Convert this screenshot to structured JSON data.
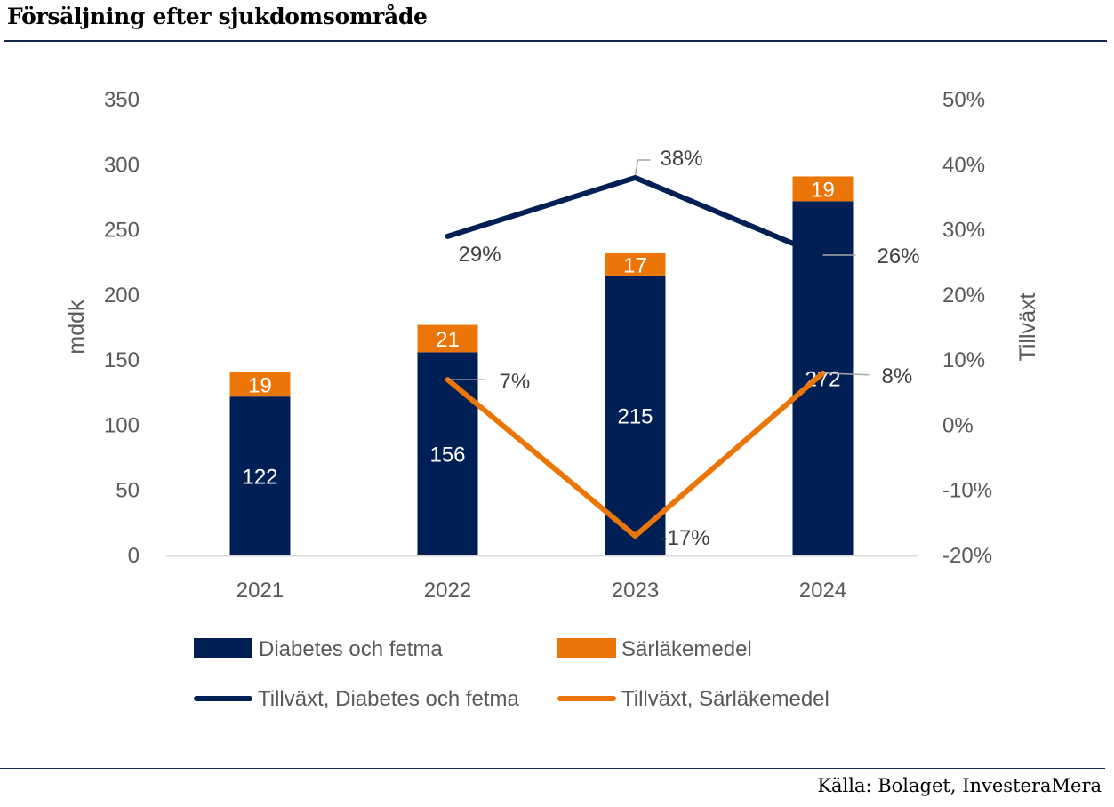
{
  "header": {
    "title": "Försäljning efter sjukdomsområde"
  },
  "footer": {
    "source": "Källa: Bolaget, InvesteraMera"
  },
  "colors": {
    "diabetes": "#002055",
    "sarlakemedel": "#ec7508",
    "rule": "#12284f",
    "axis": "#d9d9d9",
    "leader": "#a6a6a6"
  },
  "chart_data": {
    "type": "bar",
    "stacked": true,
    "title": "Försäljning efter sjukdomsområde",
    "categories": [
      "2021",
      "2022",
      "2023",
      "2024"
    ],
    "ylabel": "mddk",
    "y2label": "Tillväxt",
    "ylim": [
      0,
      350
    ],
    "yticks": [
      0,
      50,
      100,
      150,
      200,
      250,
      300,
      350
    ],
    "y2lim": [
      -20,
      50
    ],
    "y2ticks": [
      -20,
      -10,
      0,
      10,
      20,
      30,
      40,
      50
    ],
    "y2tick_labels": [
      "-20%",
      "-10%",
      "0%",
      "10%",
      "20%",
      "30%",
      "40%",
      "50%"
    ],
    "grid": false,
    "legend_position": "bottom",
    "series": [
      {
        "name": "Diabetes och fetma",
        "kind": "bar",
        "axis": "left",
        "values": [
          122,
          156,
          215,
          272
        ],
        "labels": [
          "122",
          "156",
          "215",
          "272"
        ]
      },
      {
        "name": "Särläkemedel",
        "kind": "bar",
        "axis": "left",
        "values": [
          19,
          21,
          17,
          19
        ],
        "labels": [
          "19",
          "21",
          "17",
          "19"
        ]
      },
      {
        "name": "Tillväxt, Diabetes och fetma",
        "kind": "line",
        "axis": "right",
        "values": [
          null,
          29,
          38,
          26
        ],
        "labels": [
          null,
          "29%",
          "38%",
          "26%"
        ]
      },
      {
        "name": "Tillväxt, Särläkemedel",
        "kind": "line",
        "axis": "right",
        "values": [
          null,
          7,
          -17,
          8
        ],
        "labels": [
          null,
          "7%",
          "-17%",
          "8%"
        ]
      }
    ]
  }
}
